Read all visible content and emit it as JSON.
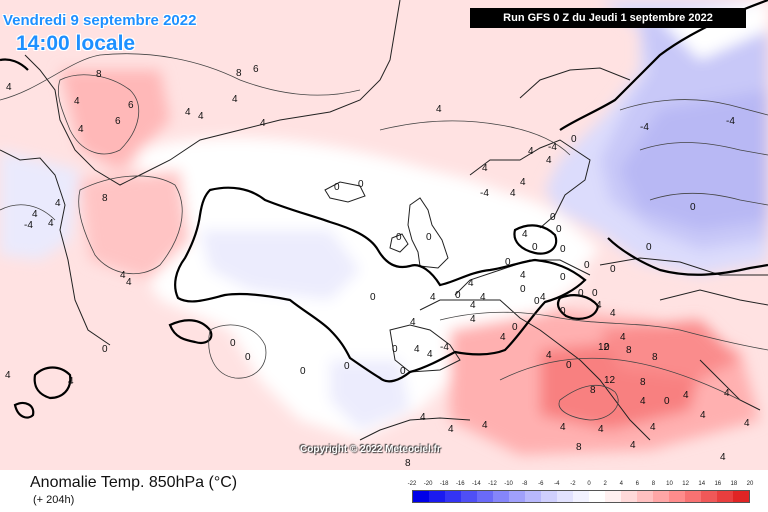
{
  "header": {
    "valid_date": "Vendredi 9 septembre 2022",
    "local_time": "14:00 locale",
    "run_info": "Run GFS 0 Z du Jeudi 1 septembre 2022"
  },
  "copyright": "Copyright © 2022 Meteociel.fr",
  "footer": {
    "title": "Anomalie Temp. 850hPa (°C)",
    "subtitle": "(+ 204h)"
  },
  "legend": {
    "labels": [
      "-22",
      "-20",
      "-18",
      "-16",
      "-14",
      "-12",
      "-10",
      "-8",
      "-6",
      "-4",
      "-2",
      "0",
      "2",
      "4",
      "6",
      "8",
      "10",
      "12",
      "14",
      "16",
      "18",
      "20"
    ],
    "colors": [
      "#0000e8",
      "#1a1af0",
      "#3434f4",
      "#4f4ff6",
      "#6a6af8",
      "#8585fa",
      "#a0a0fb",
      "#b8b8fc",
      "#cfcffd",
      "#e2e2fe",
      "#f2f2ff",
      "#ffffff",
      "#fff0f0",
      "#ffd9d9",
      "#ffc0c0",
      "#ffa6a6",
      "#ff8c8c",
      "#f87272",
      "#f05858",
      "#e83e3e",
      "#e02424"
    ]
  },
  "map_labels": [
    "-4",
    "4",
    "8",
    "4",
    "6",
    "8",
    "4",
    "4",
    "6",
    "4",
    "4",
    "4",
    "4",
    "8",
    "6",
    "4",
    "4",
    "4",
    "4",
    "4",
    "4",
    "0",
    "0",
    "0",
    "0",
    "0",
    "0",
    "0",
    "0",
    "4",
    "4",
    "4",
    "4",
    "4",
    "4",
    "4",
    "4",
    "0",
    "4",
    "-4",
    "0",
    "0",
    "0",
    "4",
    "0",
    "0",
    "0",
    "0",
    "0",
    "0",
    "0",
    "4",
    "4",
    "4",
    "0",
    "0",
    "4",
    "4",
    "4",
    "4",
    "8",
    "8",
    "8",
    "12",
    "12",
    "8",
    "8",
    "4",
    "4",
    "4",
    "4",
    "4",
    "4",
    "4",
    "4",
    "8",
    "4",
    "4",
    "0",
    "0",
    "4",
    "4",
    "0",
    "0",
    "0",
    "0",
    "0",
    "-4",
    "-4",
    "-4",
    "-4",
    "0",
    "0",
    "0",
    "0",
    "0",
    "4",
    "4",
    "4",
    "4",
    "4",
    "4"
  ]
}
